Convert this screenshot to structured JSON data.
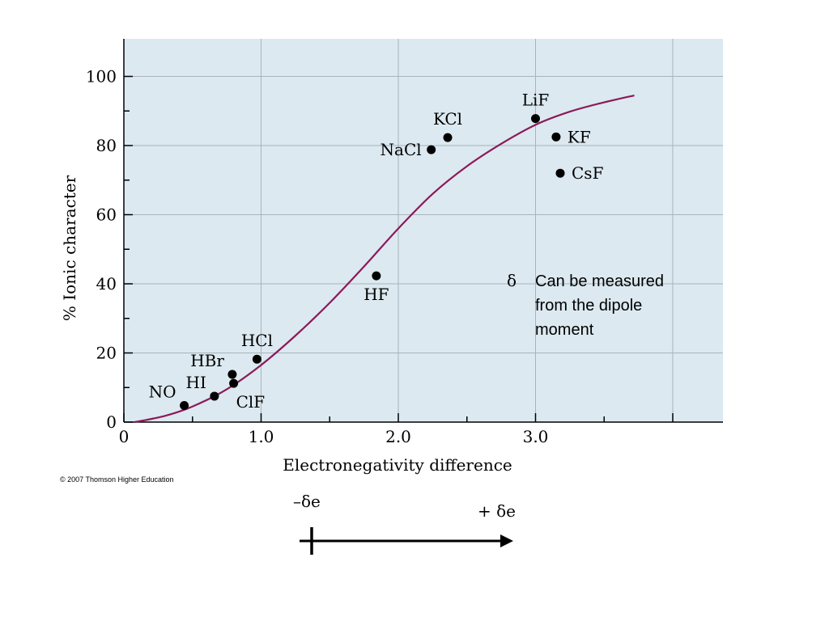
{
  "chart_data": {
    "type": "scatter",
    "title": "",
    "xlabel": "Electronegativity difference",
    "ylabel": "% Ionic character",
    "xlim": [
      0,
      4.3
    ],
    "ylim": [
      0,
      110
    ],
    "x_ticks": [
      {
        "value": 0,
        "label": "0"
      },
      {
        "value": 1.0,
        "label": "1.0"
      },
      {
        "value": 2.0,
        "label": "2.0"
      },
      {
        "value": 3.0,
        "label": "3.0"
      }
    ],
    "y_ticks": [
      {
        "value": 0,
        "label": "0"
      },
      {
        "value": 20,
        "label": "20"
      },
      {
        "value": 40,
        "label": "40"
      },
      {
        "value": 60,
        "label": "60"
      },
      {
        "value": 80,
        "label": "80"
      },
      {
        "value": 100,
        "label": "100"
      }
    ],
    "grid": true,
    "background_color": "#dce9f0",
    "curve_color": "#8b1a5a",
    "points": [
      {
        "label": "NO",
        "x": 0.44,
        "y": 4.8,
        "label_pos": "upper-left"
      },
      {
        "label": "HI",
        "x": 0.66,
        "y": 7.5,
        "label_pos": "upper-left"
      },
      {
        "label": "ClF",
        "x": 0.8,
        "y": 11.2,
        "label_pos": "lower-right"
      },
      {
        "label": "HBr",
        "x": 0.79,
        "y": 13.8,
        "label_pos": "upper-left"
      },
      {
        "label": "HCl",
        "x": 0.97,
        "y": 18.2,
        "label_pos": "above"
      },
      {
        "label": "HF",
        "x": 1.84,
        "y": 42.3,
        "label_pos": "below"
      },
      {
        "label": "NaCl",
        "x": 2.24,
        "y": 78.8,
        "label_pos": "left"
      },
      {
        "label": "KCl",
        "x": 2.36,
        "y": 82.3,
        "label_pos": "above"
      },
      {
        "label": "LiF",
        "x": 3.0,
        "y": 87.8,
        "label_pos": "above"
      },
      {
        "label": "KF",
        "x": 3.15,
        "y": 82.5,
        "label_pos": "right"
      },
      {
        "label": "CsF",
        "x": 3.18,
        "y": 72.0,
        "label_pos": "right"
      }
    ],
    "curve": {
      "x": [
        0.08,
        0.3,
        0.5,
        0.75,
        1.0,
        1.25,
        1.5,
        1.75,
        2.0,
        2.25,
        2.5,
        2.75,
        3.0,
        3.25,
        3.5,
        3.72
      ],
      "y": [
        0,
        1.8,
        4.5,
        9.5,
        16.5,
        25.0,
        34.5,
        45.0,
        56.0,
        66.0,
        74.0,
        80.5,
        86.0,
        89.8,
        92.5,
        94.5
      ]
    }
  },
  "copyright": "© 2007 Thomson Higher Education",
  "note": {
    "symbol": "δ",
    "lines": [
      "Can be measured",
      "from the dipole",
      "moment"
    ]
  },
  "arrow": {
    "left_label": "–δe",
    "right_label": "+ δe"
  }
}
